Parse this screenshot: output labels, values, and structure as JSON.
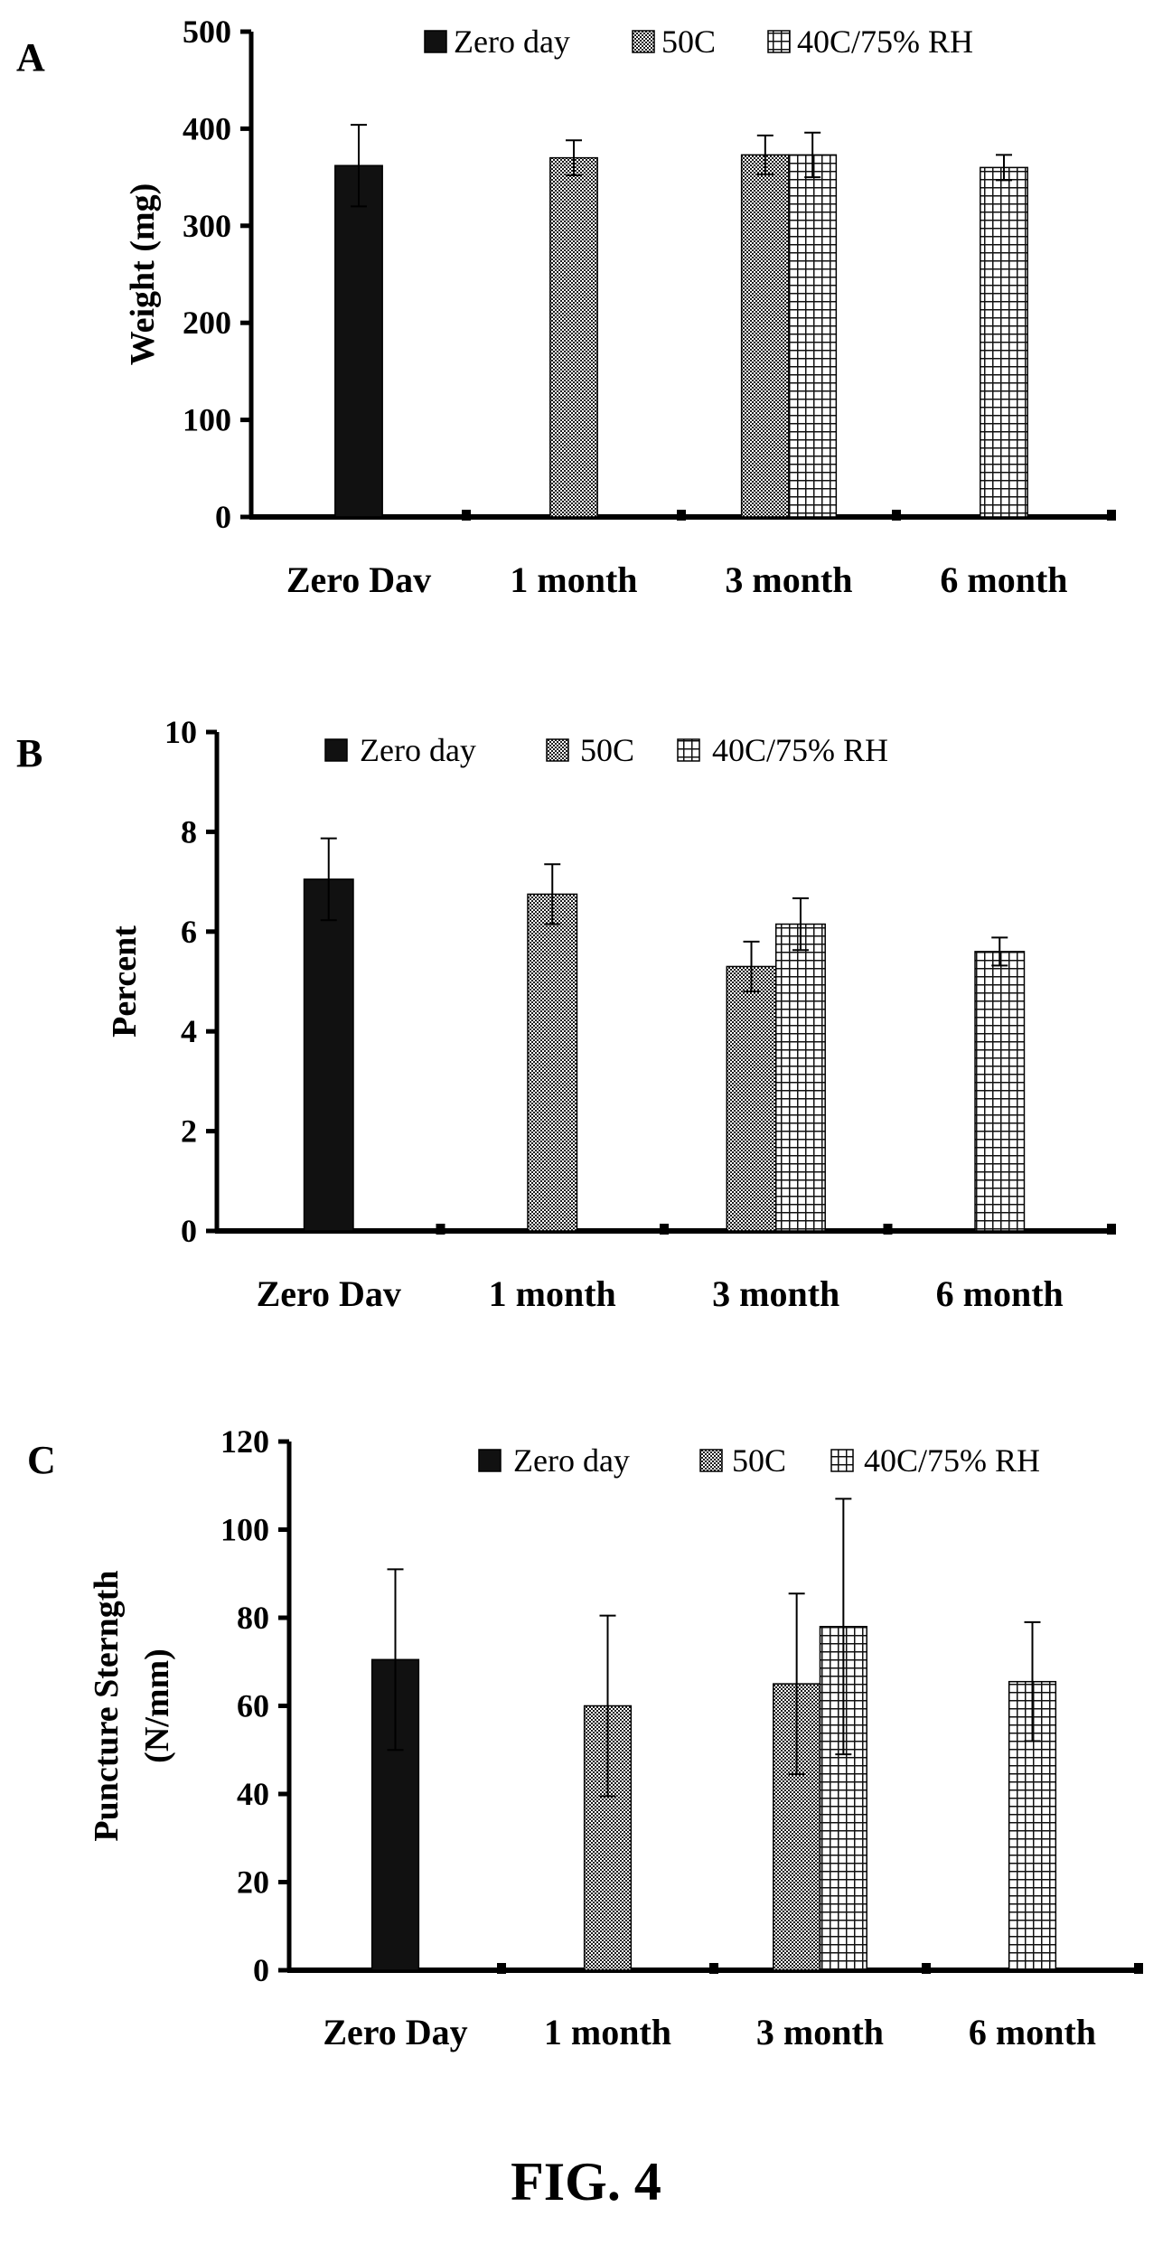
{
  "figure_caption": "FIG. 4",
  "colors": {
    "zero_day": "#111111",
    "c50": "#8c8c8c",
    "rh": "#ffffff"
  },
  "chart_data": [
    {
      "type": "bar",
      "panel": "A",
      "ylabel": "Weight (mg)",
      "ylim": [
        0,
        500
      ],
      "yticks": [
        "0",
        "100",
        "200",
        "300",
        "400",
        "500"
      ],
      "categories": [
        "Zero Dav",
        "1 month",
        "3 month",
        "6 month"
      ],
      "legend": [
        "Zero day",
        "50C",
        "40C/75% RH"
      ],
      "legend_position": "top",
      "grid": false,
      "series": [
        {
          "name": "Zero day",
          "values": [
            362,
            null,
            null,
            null
          ],
          "errors": [
            42,
            null,
            null,
            null
          ]
        },
        {
          "name": "50C",
          "values": [
            null,
            370,
            373,
            null
          ],
          "errors": [
            null,
            18,
            20,
            null
          ]
        },
        {
          "name": "40C/75% RH",
          "values": [
            null,
            null,
            373,
            360
          ],
          "errors": [
            null,
            null,
            23,
            13
          ]
        }
      ]
    },
    {
      "type": "bar",
      "panel": "B",
      "ylabel": "Percent",
      "ylim": [
        0,
        10
      ],
      "yticks": [
        "0",
        "2",
        "4",
        "6",
        "8",
        "10"
      ],
      "categories": [
        "Zero Dav",
        "1 month",
        "3 month",
        "6 month"
      ],
      "legend": [
        "Zero day",
        "50C",
        "40C/75% RH"
      ],
      "legend_position": "top",
      "grid": false,
      "series": [
        {
          "name": "Zero day",
          "values": [
            7.05,
            null,
            null,
            null
          ],
          "errors": [
            0.82,
            null,
            null,
            null
          ]
        },
        {
          "name": "50C",
          "values": [
            null,
            6.75,
            5.3,
            null
          ],
          "errors": [
            null,
            0.6,
            0.5,
            null
          ]
        },
        {
          "name": "40C/75% RH",
          "values": [
            null,
            null,
            6.15,
            5.6
          ],
          "errors": [
            null,
            null,
            0.52,
            0.28
          ]
        }
      ]
    },
    {
      "type": "bar",
      "panel": "C",
      "ylabel_lines": [
        "Puncture Sterngth",
        "(N/mm)"
      ],
      "ylim": [
        0,
        120
      ],
      "yticks": [
        "0",
        "20",
        "40",
        "60",
        "80",
        "100",
        "120"
      ],
      "categories": [
        "Zero Day",
        "1 month",
        "3 month",
        "6 month"
      ],
      "legend": [
        "Zero day",
        "50C",
        "40C/75% RH"
      ],
      "legend_position": "top-right",
      "grid": false,
      "series": [
        {
          "name": "Zero day",
          "values": [
            70.5,
            null,
            null,
            null
          ],
          "errors": [
            20.5,
            null,
            null,
            null
          ]
        },
        {
          "name": "50C",
          "values": [
            null,
            60,
            65,
            null
          ],
          "errors": [
            null,
            20.5,
            20.5,
            null
          ]
        },
        {
          "name": "40C/75% RH",
          "values": [
            null,
            null,
            78,
            65.5
          ],
          "errors": [
            null,
            null,
            29,
            13.5
          ]
        }
      ]
    }
  ]
}
